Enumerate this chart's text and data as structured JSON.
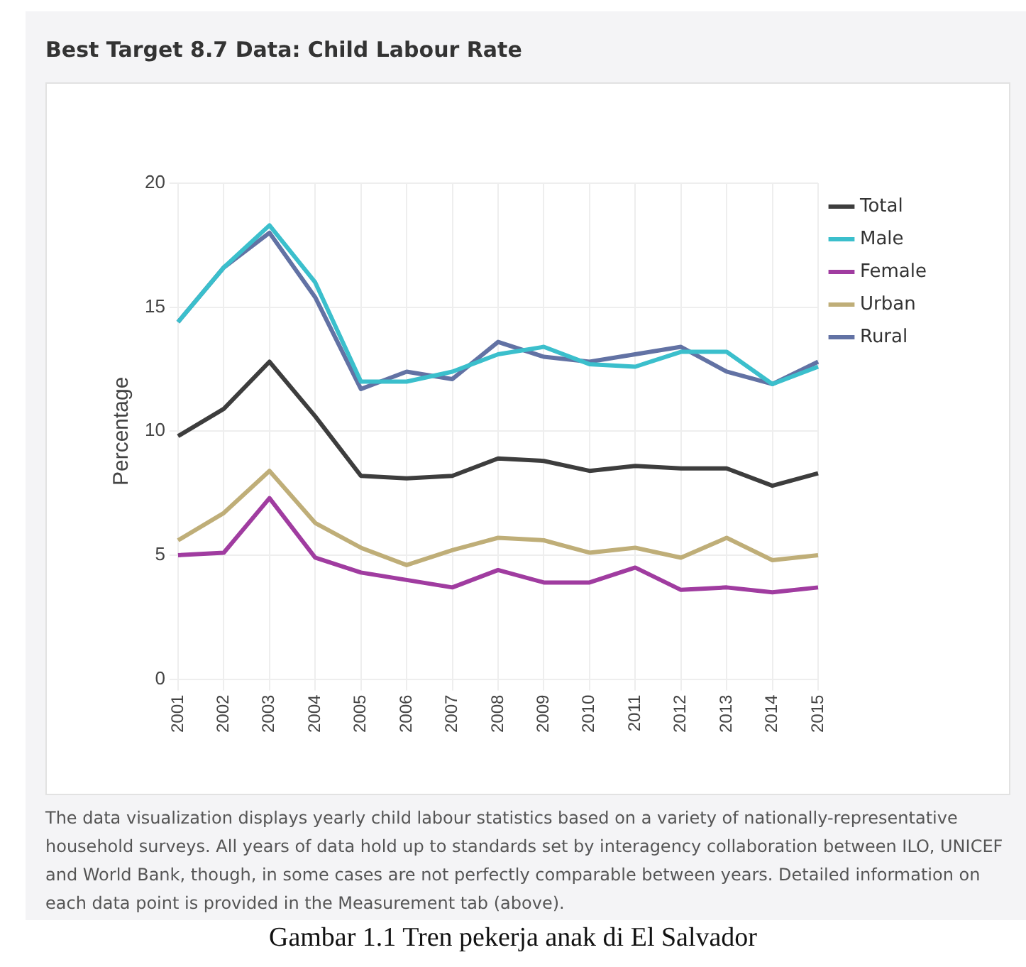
{
  "chart_data": {
    "type": "line",
    "title": "Best Target 8.7 Data: Child Labour Rate",
    "ylabel": "Percentage",
    "categories": [
      "2001",
      "2002",
      "2003",
      "2004",
      "2005",
      "2006",
      "2007",
      "2008",
      "2009",
      "2010",
      "2011",
      "2012",
      "2013",
      "2014",
      "2015"
    ],
    "series": [
      {
        "name": "Total",
        "color": "#3d3d3d",
        "values": [
          9.8,
          10.9,
          12.8,
          10.6,
          8.2,
          8.1,
          8.2,
          8.9,
          8.8,
          8.4,
          8.6,
          8.5,
          8.5,
          7.8,
          8.3
        ]
      },
      {
        "name": "Male",
        "color": "#3bbfcc",
        "values": [
          14.4,
          16.6,
          18.3,
          16.0,
          12.0,
          12.0,
          12.4,
          13.1,
          13.4,
          12.7,
          12.6,
          13.2,
          13.2,
          11.9,
          12.6
        ]
      },
      {
        "name": "Female",
        "color": "#a03ca0",
        "values": [
          5.0,
          5.1,
          7.3,
          4.9,
          4.3,
          4.0,
          3.7,
          4.4,
          3.9,
          3.9,
          4.5,
          3.6,
          3.7,
          3.5,
          3.7
        ]
      },
      {
        "name": "Urban",
        "color": "#bfae78",
        "values": [
          5.6,
          6.7,
          8.4,
          6.3,
          5.3,
          4.6,
          5.2,
          5.7,
          5.6,
          5.1,
          5.3,
          4.9,
          5.7,
          4.8,
          5.0
        ]
      },
      {
        "name": "Rural",
        "color": "#6272a4",
        "values": [
          14.4,
          16.6,
          18.0,
          15.4,
          11.7,
          12.4,
          12.1,
          13.6,
          13.0,
          12.8,
          13.1,
          13.4,
          12.4,
          11.9,
          12.8
        ]
      }
    ],
    "ylim": [
      0,
      20
    ],
    "yticks": [
      0,
      5,
      10,
      15,
      20
    ],
    "grid": true,
    "legend": "top right",
    "marker": "none",
    "line_style": "solid",
    "annotations": [
      "The data visualization displays yearly child labour statistics based on a variety of nationally-representative household surveys. All years of data hold up to standards set by interagency collaboration between ILO, UNICEF and World Bank, though, in some cases are not perfectly comparable between years. Detailed information on each data point is provided in the Measurement tab (above).",
      "Gambar 1.1 Tren pekerja anak di El Salvador"
    ]
  }
}
